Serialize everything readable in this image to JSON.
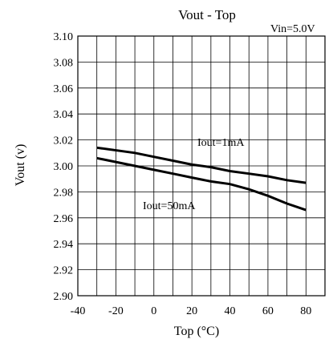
{
  "chart_data": {
    "type": "line",
    "title": "Vout - Top",
    "xlabel": "Top (°C)",
    "ylabel": "Vout (v)",
    "xlim": [
      -40,
      90
    ],
    "ylim": [
      2.9,
      3.1
    ],
    "xticks": [
      "-40",
      "-20",
      "0",
      "20",
      "40",
      "60",
      "80"
    ],
    "yticks": [
      "2.90",
      "2.92",
      "2.94",
      "2.96",
      "2.98",
      "3.00",
      "3.02",
      "3.04",
      "3.06",
      "3.08",
      "3.10"
    ],
    "grid": true,
    "annotations": [
      "Vin=5.0V",
      "Iout=1mA",
      "Iout=50mA"
    ],
    "series": [
      {
        "name": "Iout=1mA",
        "x": [
          -30,
          -10,
          0,
          10,
          20,
          30,
          40,
          50,
          60,
          70,
          80
        ],
        "y": [
          3.014,
          3.01,
          3.007,
          3.004,
          3.001,
          2.999,
          2.996,
          2.994,
          2.992,
          2.989,
          2.987
        ]
      },
      {
        "name": "Iout=50mA",
        "x": [
          -30,
          -10,
          0,
          10,
          20,
          30,
          40,
          50,
          60,
          70,
          80
        ],
        "y": [
          3.006,
          3.0,
          2.997,
          2.994,
          2.991,
          2.988,
          2.986,
          2.982,
          2.977,
          2.971,
          2.966
        ]
      }
    ]
  }
}
